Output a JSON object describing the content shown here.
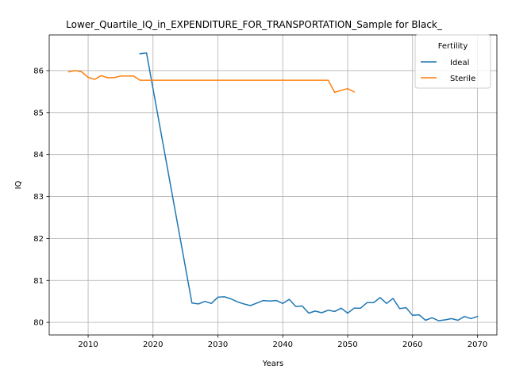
{
  "chart_data": {
    "type": "line",
    "title": "Lower_Quartile_IQ_in_EXPENDITURE_FOR_TRANSPORTATION_Sample for Black_",
    "xlabel": "Years",
    "ylabel": "IQ",
    "xlim": [
      2004,
      2073
    ],
    "ylim": [
      79.7,
      86.85
    ],
    "x_ticks": [
      2010,
      2020,
      2030,
      2040,
      2050,
      2060,
      2070
    ],
    "y_ticks": [
      80,
      81,
      82,
      83,
      84,
      85,
      86
    ],
    "grid": true,
    "legend": {
      "title": "Fertility",
      "placement": "upper-right"
    },
    "series": [
      {
        "name": "Ideal",
        "color": "#1f77b4",
        "x": [
          2018,
          2019,
          2026,
          2027,
          2028,
          2029,
          2030,
          2031,
          2032,
          2033,
          2034,
          2035,
          2036,
          2037,
          2038,
          2039,
          2040,
          2041,
          2042,
          2043,
          2044,
          2045,
          2046,
          2047,
          2048,
          2049,
          2050,
          2051,
          2052,
          2053,
          2054,
          2055,
          2056,
          2057,
          2058,
          2059,
          2060,
          2061,
          2062,
          2063,
          2064,
          2065,
          2066,
          2067,
          2068,
          2069,
          2070
        ],
        "values": [
          86.4,
          86.42,
          80.46,
          80.44,
          80.5,
          80.45,
          80.6,
          80.61,
          80.56,
          80.49,
          80.44,
          80.4,
          80.46,
          80.52,
          80.51,
          80.52,
          80.45,
          80.55,
          80.38,
          80.39,
          80.22,
          80.27,
          80.23,
          80.29,
          80.26,
          80.34,
          80.22,
          80.34,
          80.34,
          80.47,
          80.47,
          80.59,
          80.45,
          80.57,
          80.33,
          80.35,
          80.17,
          80.18,
          80.05,
          80.11,
          80.04,
          80.06,
          80.09,
          80.05,
          80.14,
          80.09,
          80.14
        ]
      },
      {
        "name": "Sterile",
        "color": "#ff7f0e",
        "x": [
          2007,
          2008,
          2009,
          2010,
          2011,
          2012,
          2013,
          2014,
          2015,
          2016,
          2017,
          2018,
          2019,
          2020,
          2021,
          2022,
          2023,
          2024,
          2025,
          2026,
          2027,
          2028,
          2029,
          2030,
          2031,
          2032,
          2033,
          2034,
          2035,
          2036,
          2037,
          2038,
          2039,
          2040,
          2041,
          2042,
          2043,
          2044,
          2045,
          2046,
          2047,
          2048,
          2049,
          2050,
          2051
        ],
        "values": [
          85.97,
          86.0,
          85.97,
          85.84,
          85.79,
          85.88,
          85.83,
          85.83,
          85.87,
          85.87,
          85.87,
          85.77,
          85.77,
          85.77,
          85.77,
          85.77,
          85.77,
          85.77,
          85.77,
          85.77,
          85.77,
          85.77,
          85.77,
          85.77,
          85.77,
          85.77,
          85.77,
          85.77,
          85.77,
          85.77,
          85.77,
          85.77,
          85.77,
          85.77,
          85.77,
          85.77,
          85.77,
          85.77,
          85.77,
          85.77,
          85.77,
          85.48,
          85.53,
          85.57,
          85.49
        ]
      }
    ]
  }
}
